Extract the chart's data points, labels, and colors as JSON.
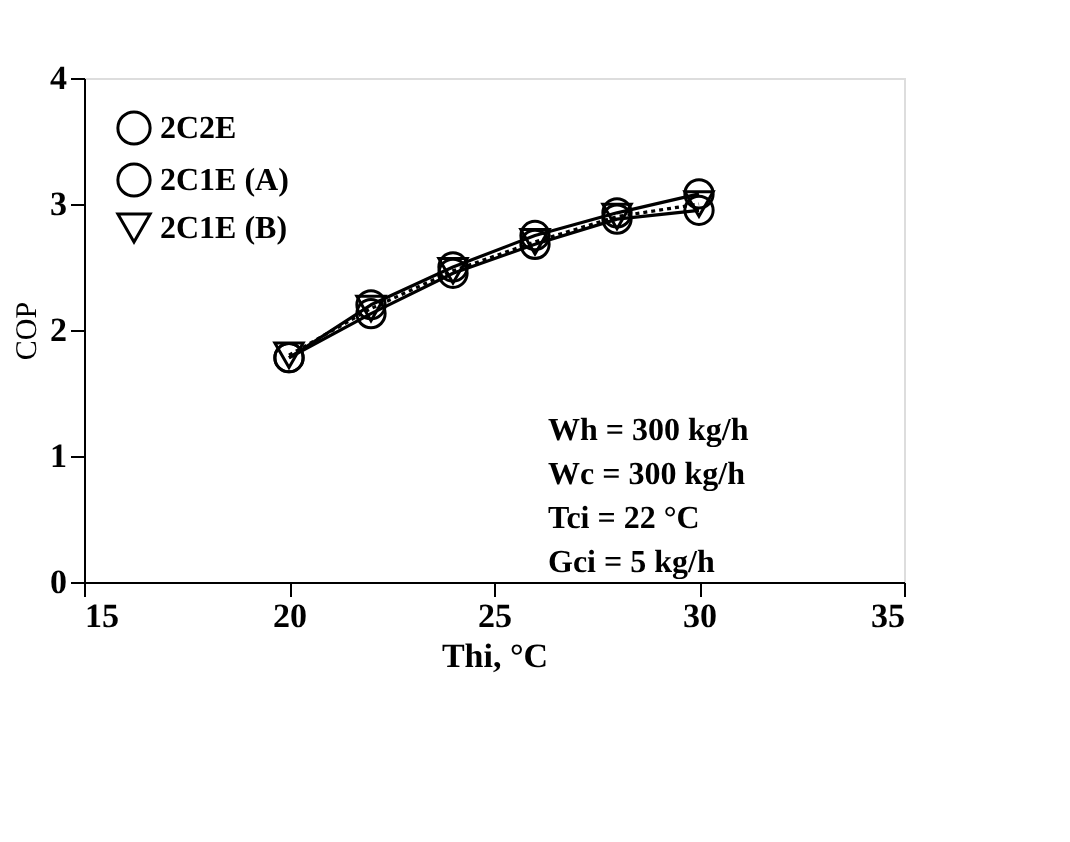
{
  "chart_data": {
    "type": "line",
    "xlabel": "Thi, °C",
    "ylabel": "COP",
    "xlim": [
      15,
      35
    ],
    "ylim": [
      0,
      4
    ],
    "xticks": [
      15,
      20,
      25,
      30,
      35
    ],
    "yticks": [
      0,
      1,
      2,
      3,
      4
    ],
    "grid": false,
    "legend": "top left",
    "x": [
      20,
      22,
      24,
      26,
      28,
      30
    ],
    "series": [
      {
        "name": "2C2E",
        "color": "#000000",
        "marker": "circle",
        "line_style": "solid",
        "values": [
          1.78,
          2.2,
          2.5,
          2.75,
          2.93,
          3.08
        ]
      },
      {
        "name": "2C1E (A)",
        "color": "#000000",
        "marker": "circle",
        "line_style": "solid",
        "values": [
          1.78,
          2.13,
          2.45,
          2.68,
          2.88,
          2.95
        ]
      },
      {
        "name": "2C1E (B)",
        "color": "#000000",
        "marker": "triangle",
        "line_style": "dotted",
        "values": [
          1.8,
          2.17,
          2.47,
          2.7,
          2.9,
          3.0
        ]
      }
    ],
    "annotations": [
      "Wh = 300 kg/h",
      "Wc = 300 kg/h",
      "Tci = 22 °C",
      "Gci = 5 kg/h"
    ]
  }
}
